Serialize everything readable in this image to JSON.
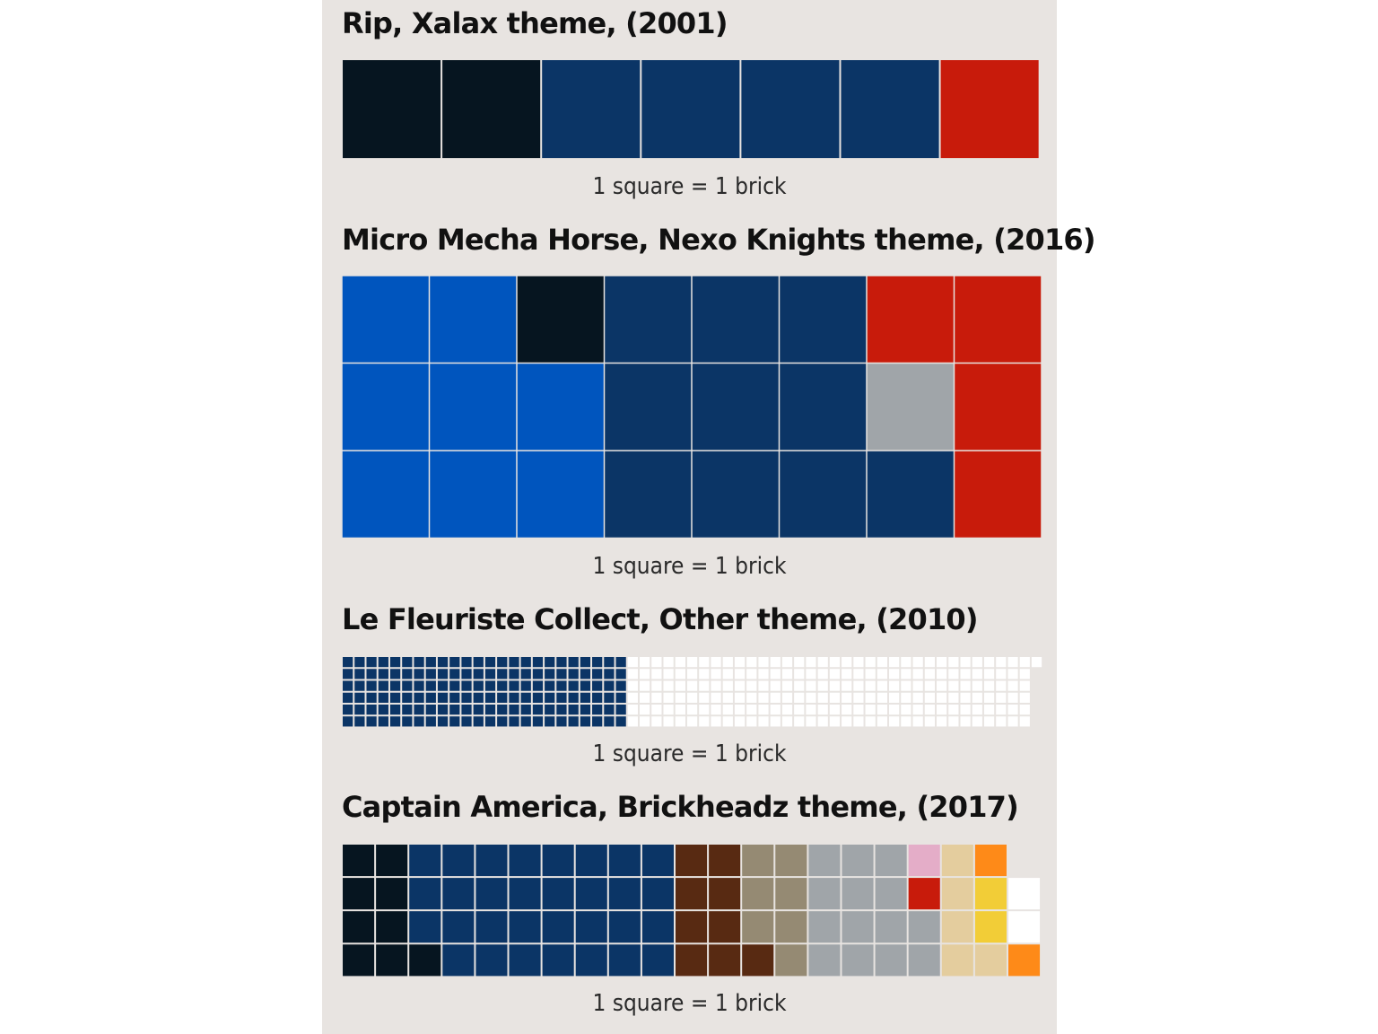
{
  "chart_data": [
    {
      "type": "waffle",
      "title": "Rip, Xalax theme, (2001)",
      "caption": "1 square = 1 brick",
      "rows": 1,
      "squares": [
        "#061520",
        "#061520",
        "#0b3566",
        "#0b3566",
        "#0b3566",
        "#0b3566",
        "#c81b0b"
      ]
    },
    {
      "type": "waffle",
      "title": "Micro Mecha Horse, Nexo Knights theme, (2016)",
      "caption": "1 square = 1 brick",
      "rows": 3,
      "squares": [
        "#0055be",
        "#0055be",
        "#0055be",
        "#0055be",
        "#0055be",
        "#0055be",
        "#061520",
        "#0055be",
        "#0055be",
        "#0b3566",
        "#0b3566",
        "#0b3566",
        "#0b3566",
        "#0b3566",
        "#0b3566",
        "#0b3566",
        "#0b3566",
        "#0b3566",
        "#c81b0b",
        "#a0a5a9",
        "#0b3566",
        "#c81b0b",
        "#c81b0b",
        "#c81b0b"
      ]
    },
    {
      "type": "waffle",
      "title": "Le Fleuriste Collect, Other theme, (2010)",
      "caption": "1 square = 1 brick",
      "rows": 6,
      "series": [
        {
          "color": "#0b3566",
          "count": 144
        },
        {
          "color": "#ffffff",
          "count": 205
        }
      ]
    },
    {
      "type": "waffle",
      "title": "Captain America, Brickheadz theme, (2017)",
      "caption": "1 square = 1 brick",
      "rows": 4,
      "squares": [
        "#061520",
        "#061520",
        "#061520",
        "#061520",
        "#061520",
        "#061520",
        "#061520",
        "#061520",
        "#0b3566",
        "#0b3566",
        "#0b3566",
        "#061520",
        "#0b3566",
        "#0b3566",
        "#0b3566",
        "#0b3566",
        "#0b3566",
        "#0b3566",
        "#0b3566",
        "#0b3566",
        "#0b3566",
        "#0b3566",
        "#0b3566",
        "#0b3566",
        "#0b3566",
        "#0b3566",
        "#0b3566",
        "#0b3566",
        "#0b3566",
        "#0b3566",
        "#0b3566",
        "#0b3566",
        "#0b3566",
        "#0b3566",
        "#0b3566",
        "#0b3566",
        "#0b3566",
        "#0b3566",
        "#0b3566",
        "#0b3566",
        "#582a12",
        "#582a12",
        "#582a12",
        "#582a12",
        "#582a12",
        "#582a12",
        "#582a12",
        "#582a12",
        "#958a73",
        "#958a73",
        "#958a73",
        "#582a12",
        "#958a73",
        "#958a73",
        "#958a73",
        "#958a73",
        "#a0a5a9",
        "#a0a5a9",
        "#a0a5a9",
        "#a0a5a9",
        "#a0a5a9",
        "#a0a5a9",
        "#a0a5a9",
        "#a0a5a9",
        "#a0a5a9",
        "#a0a5a9",
        "#a0a5a9",
        "#a0a5a9",
        "#e4adc8",
        "#c81b0b",
        "#a0a5a9",
        "#a0a5a9",
        "#e4cd9e",
        "#e4cd9e",
        "#e4cd9e",
        "#e4cd9e",
        "#fe8a18",
        "#f2cd37",
        "#f2cd37",
        "#e4cd9e",
        null,
        "#ffffff",
        "#ffffff",
        "#fe8a18"
      ]
    }
  ]
}
